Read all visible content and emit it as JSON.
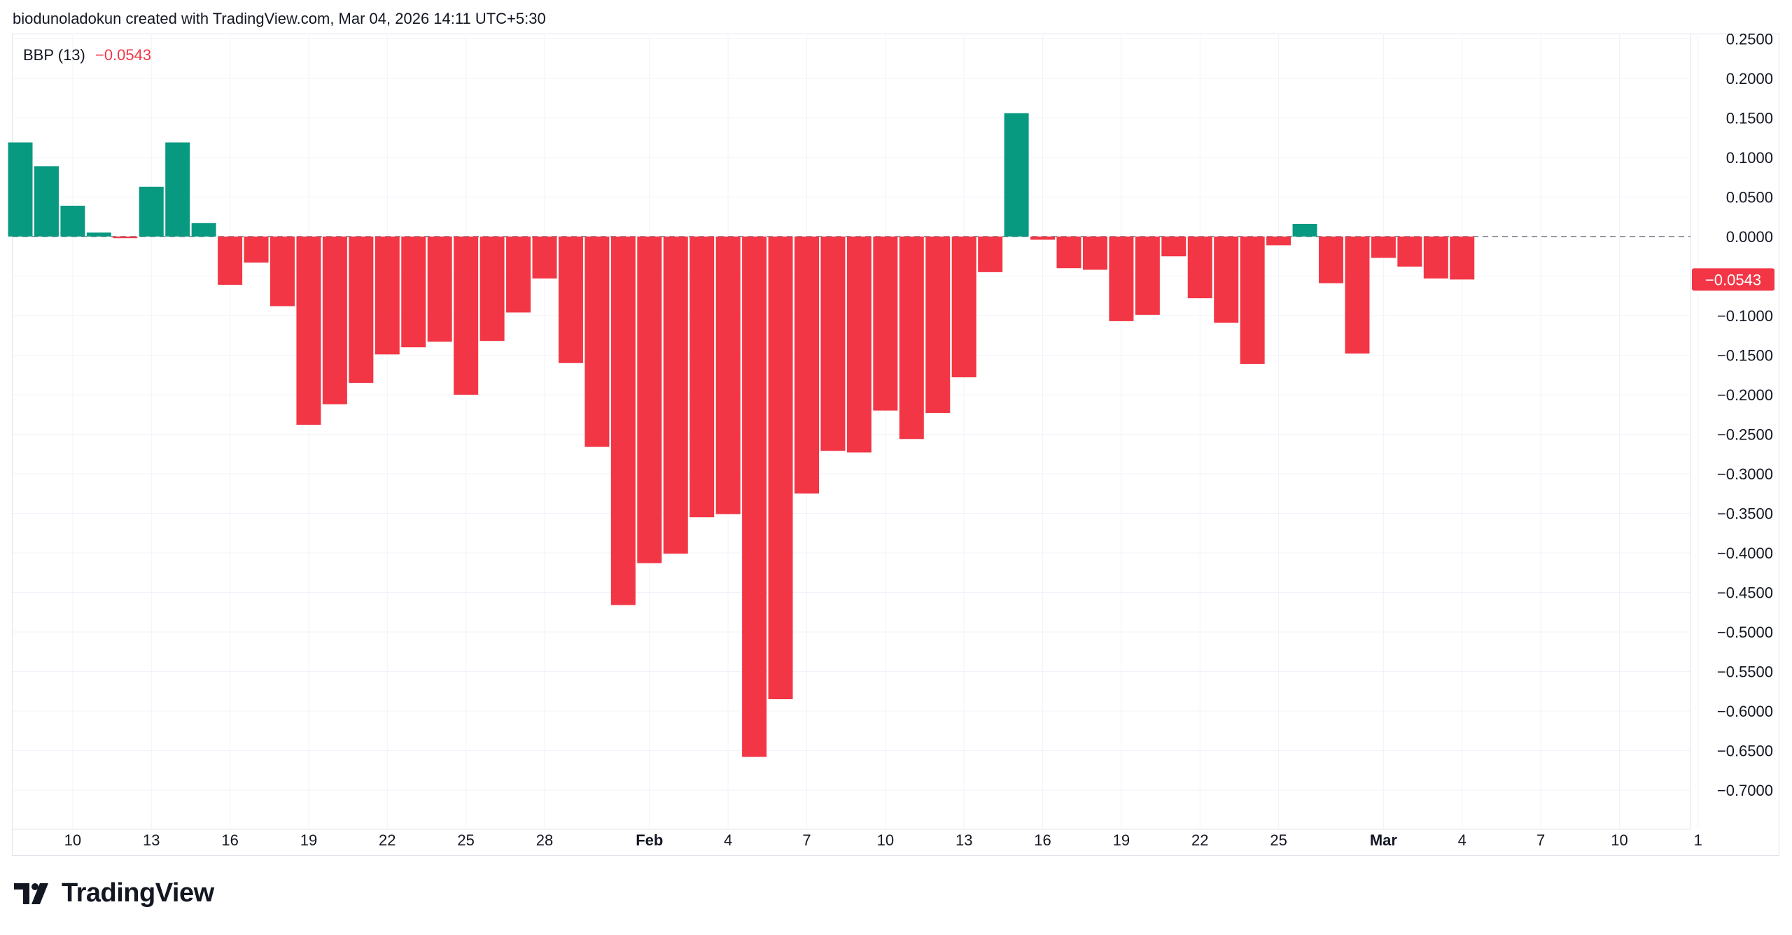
{
  "header": {
    "attribution": "biodunoladokun created with TradingView.com, Mar 04, 2026 14:11 UTC+5:30"
  },
  "legend": {
    "name": "BBP (13)",
    "value": "−0.0543"
  },
  "logo": {
    "text": "TradingView"
  },
  "colors": {
    "positive": "#089981",
    "negative": "#f23645",
    "grid": "#f0f3fa",
    "text": "#131722"
  },
  "chart_data": {
    "type": "bar",
    "title": "BBP (13)",
    "ylim": [
      -0.73,
      0.25
    ],
    "yticks": [
      {
        "v": 0.25,
        "label": "0.2500"
      },
      {
        "v": 0.2,
        "label": "0.2000"
      },
      {
        "v": 0.15,
        "label": "0.1500"
      },
      {
        "v": 0.1,
        "label": "0.1000"
      },
      {
        "v": 0.05,
        "label": "0.0500"
      },
      {
        "v": 0.0,
        "label": "0.0000"
      },
      {
        "v": -0.05,
        "label": "−0.0500"
      },
      {
        "v": -0.1,
        "label": "−0.1000"
      },
      {
        "v": -0.15,
        "label": "−0.1500"
      },
      {
        "v": -0.2,
        "label": "−0.2000"
      },
      {
        "v": -0.25,
        "label": "−0.2500"
      },
      {
        "v": -0.3,
        "label": "−0.3000"
      },
      {
        "v": -0.35,
        "label": "−0.3500"
      },
      {
        "v": -0.4,
        "label": "−0.4000"
      },
      {
        "v": -0.45,
        "label": "−0.4500"
      },
      {
        "v": -0.5,
        "label": "−0.5000"
      },
      {
        "v": -0.55,
        "label": "−0.5500"
      },
      {
        "v": -0.6,
        "label": "−0.6000"
      },
      {
        "v": -0.65,
        "label": "−0.6500"
      },
      {
        "v": -0.7,
        "label": "−0.7000"
      }
    ],
    "xticks": [
      {
        "i": 2,
        "label": "10",
        "bold": false
      },
      {
        "i": 5,
        "label": "13",
        "bold": false
      },
      {
        "i": 8,
        "label": "16",
        "bold": false
      },
      {
        "i": 11,
        "label": "19",
        "bold": false
      },
      {
        "i": 14,
        "label": "22",
        "bold": false
      },
      {
        "i": 17,
        "label": "25",
        "bold": false
      },
      {
        "i": 20,
        "label": "28",
        "bold": false
      },
      {
        "i": 24,
        "label": "Feb",
        "bold": true
      },
      {
        "i": 27,
        "label": "4",
        "bold": false
      },
      {
        "i": 30,
        "label": "7",
        "bold": false
      },
      {
        "i": 33,
        "label": "10",
        "bold": false
      },
      {
        "i": 36,
        "label": "13",
        "bold": false
      },
      {
        "i": 39,
        "label": "16",
        "bold": false
      },
      {
        "i": 42,
        "label": "19",
        "bold": false
      },
      {
        "i": 45,
        "label": "22",
        "bold": false
      },
      {
        "i": 48,
        "label": "25",
        "bold": false
      },
      {
        "i": 52,
        "label": "Mar",
        "bold": true
      },
      {
        "i": 55,
        "label": "4",
        "bold": false
      },
      {
        "i": 58,
        "label": "7",
        "bold": false
      },
      {
        "i": 61,
        "label": "10",
        "bold": false
      },
      {
        "i": 64,
        "label": "1",
        "bold": false
      }
    ],
    "values": [
      0.119,
      0.089,
      0.039,
      0.005,
      -0.002,
      0.063,
      0.119,
      0.017,
      -0.061,
      -0.033,
      -0.088,
      -0.238,
      -0.212,
      -0.185,
      -0.149,
      -0.14,
      -0.133,
      -0.2,
      -0.132,
      -0.096,
      -0.053,
      -0.16,
      -0.266,
      -0.466,
      -0.413,
      -0.401,
      -0.355,
      -0.351,
      -0.658,
      -0.585,
      -0.325,
      -0.271,
      -0.273,
      -0.22,
      -0.256,
      -0.223,
      -0.178,
      -0.045,
      0.156,
      -0.004,
      -0.04,
      -0.042,
      -0.107,
      -0.099,
      -0.025,
      -0.078,
      -0.109,
      -0.161,
      -0.011,
      0.016,
      -0.059,
      -0.148,
      -0.027,
      -0.038,
      -0.053,
      -0.0543
    ],
    "last_value_label": "−0.0543"
  }
}
